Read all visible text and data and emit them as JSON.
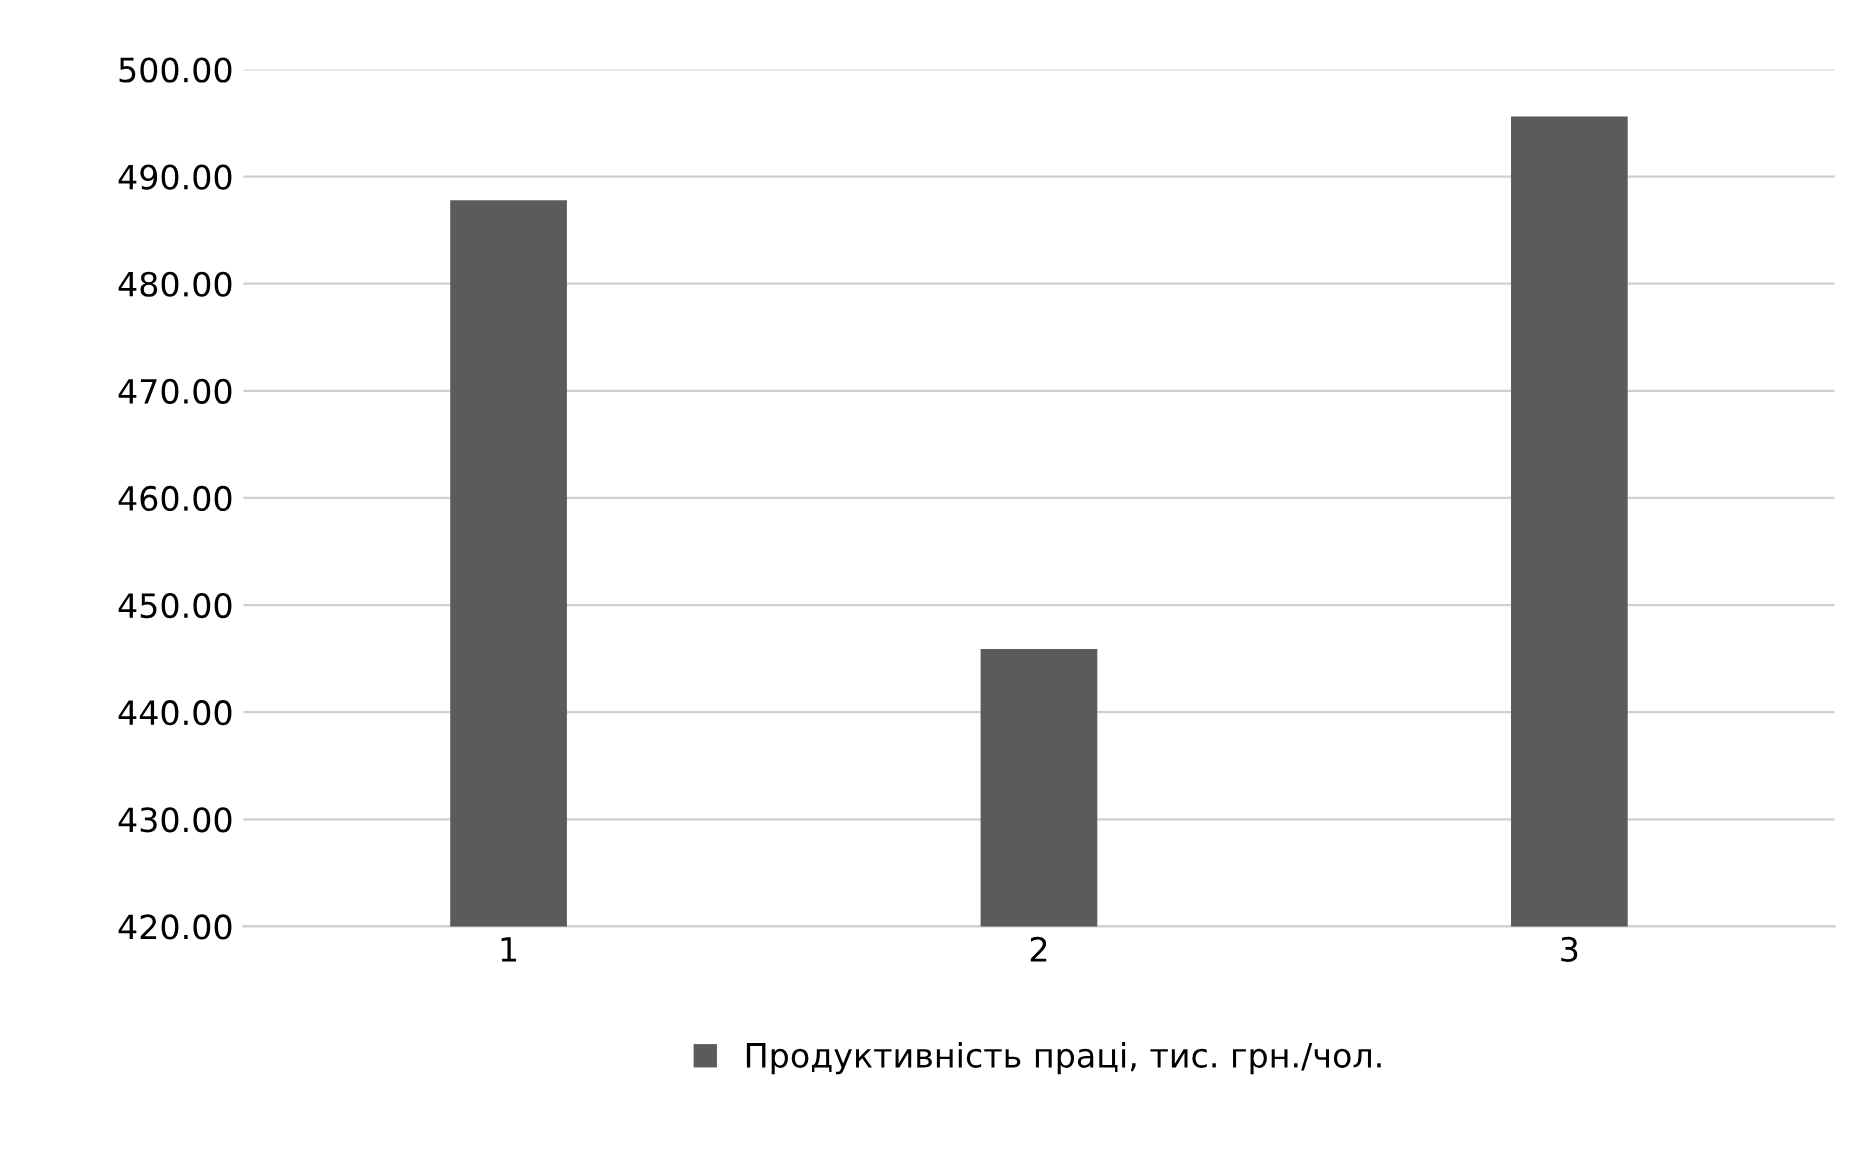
{
  "chart_data": {
    "type": "bar",
    "categories": [
      "1",
      "2",
      "3"
    ],
    "series": [
      {
        "name": "Продуктивність праці, тис. грн./чол.",
        "color": "#5b5b5b",
        "values": [
          487.8,
          445.9,
          495.6
        ]
      }
    ],
    "ylim": [
      420,
      500
    ],
    "yticks": [
      {
        "value": 420,
        "label": "420.00"
      },
      {
        "value": 430,
        "label": "430.00"
      },
      {
        "value": 440,
        "label": "440.00"
      },
      {
        "value": 450,
        "label": "450.00"
      },
      {
        "value": 460,
        "label": "460.00"
      },
      {
        "value": 470,
        "label": "470.00"
      },
      {
        "value": 480,
        "label": "480.00"
      },
      {
        "value": 490,
        "label": "490.00"
      },
      {
        "value": 500,
        "label": "500.00"
      }
    ],
    "grid": "y",
    "legend": "bottom"
  }
}
